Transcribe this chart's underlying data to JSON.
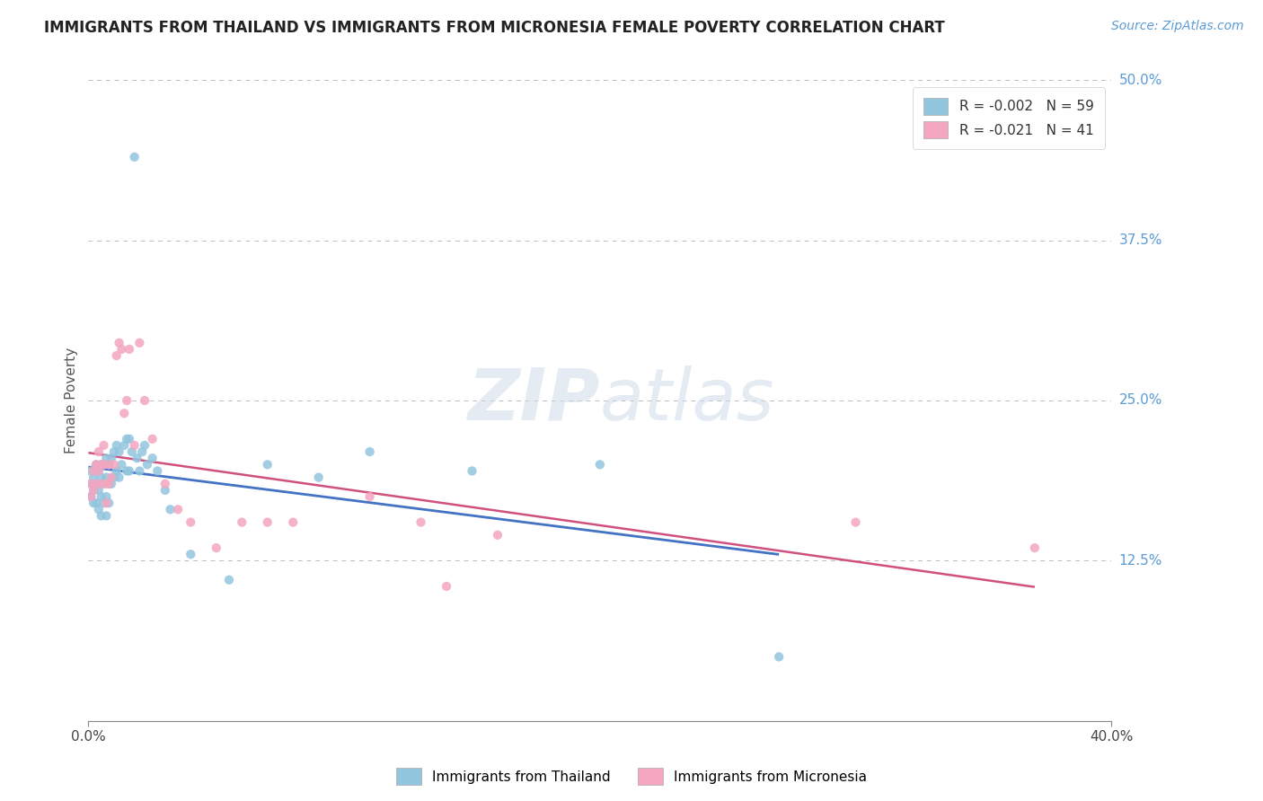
{
  "title": "IMMIGRANTS FROM THAILAND VS IMMIGRANTS FROM MICRONESIA FEMALE POVERTY CORRELATION CHART",
  "source": "Source: ZipAtlas.com",
  "ylabel": "Female Poverty",
  "legend_r1": "R = -0.002   N = 59",
  "legend_r2": "R = -0.021   N = 41",
  "legend_label1": "Immigrants from Thailand",
  "legend_label2": "Immigrants from Micronesia",
  "color_thailand": "#92C5DE",
  "color_micronesia": "#F4A6C0",
  "color_line_thailand": "#4472C4",
  "color_line_micronesia": "#D05080",
  "background_color": "#FFFFFF",
  "grid_color": "#BBBBBB",
  "xlim": [
    0.0,
    0.4
  ],
  "ylim": [
    0.0,
    0.5
  ],
  "thailand_x": [
    0.001,
    0.001,
    0.001,
    0.002,
    0.002,
    0.002,
    0.003,
    0.003,
    0.003,
    0.004,
    0.004,
    0.004,
    0.005,
    0.005,
    0.005,
    0.005,
    0.006,
    0.006,
    0.006,
    0.007,
    0.007,
    0.007,
    0.007,
    0.008,
    0.008,
    0.008,
    0.009,
    0.009,
    0.01,
    0.01,
    0.011,
    0.011,
    0.012,
    0.012,
    0.013,
    0.014,
    0.015,
    0.015,
    0.016,
    0.016,
    0.017,
    0.018,
    0.019,
    0.02,
    0.021,
    0.022,
    0.023,
    0.025,
    0.027,
    0.03,
    0.032,
    0.04,
    0.055,
    0.07,
    0.09,
    0.11,
    0.15,
    0.2,
    0.27
  ],
  "thailand_y": [
    0.195,
    0.185,
    0.175,
    0.19,
    0.18,
    0.17,
    0.2,
    0.185,
    0.17,
    0.195,
    0.18,
    0.165,
    0.2,
    0.19,
    0.175,
    0.16,
    0.2,
    0.185,
    0.17,
    0.205,
    0.19,
    0.175,
    0.16,
    0.2,
    0.185,
    0.17,
    0.205,
    0.185,
    0.21,
    0.19,
    0.215,
    0.195,
    0.21,
    0.19,
    0.2,
    0.215,
    0.22,
    0.195,
    0.22,
    0.195,
    0.21,
    0.44,
    0.205,
    0.195,
    0.21,
    0.215,
    0.2,
    0.205,
    0.195,
    0.18,
    0.165,
    0.13,
    0.11,
    0.2,
    0.19,
    0.21,
    0.195,
    0.2,
    0.05
  ],
  "micronesia_x": [
    0.001,
    0.001,
    0.002,
    0.002,
    0.003,
    0.003,
    0.004,
    0.004,
    0.005,
    0.005,
    0.006,
    0.006,
    0.007,
    0.007,
    0.008,
    0.008,
    0.009,
    0.01,
    0.011,
    0.012,
    0.013,
    0.014,
    0.015,
    0.016,
    0.018,
    0.02,
    0.022,
    0.025,
    0.03,
    0.035,
    0.04,
    0.05,
    0.06,
    0.07,
    0.08,
    0.11,
    0.13,
    0.14,
    0.16,
    0.3,
    0.37
  ],
  "micronesia_y": [
    0.185,
    0.175,
    0.195,
    0.18,
    0.2,
    0.185,
    0.21,
    0.195,
    0.2,
    0.185,
    0.215,
    0.2,
    0.185,
    0.17,
    0.2,
    0.185,
    0.19,
    0.2,
    0.285,
    0.295,
    0.29,
    0.24,
    0.25,
    0.29,
    0.215,
    0.295,
    0.25,
    0.22,
    0.185,
    0.165,
    0.155,
    0.135,
    0.155,
    0.155,
    0.155,
    0.175,
    0.155,
    0.105,
    0.145,
    0.155,
    0.135
  ]
}
